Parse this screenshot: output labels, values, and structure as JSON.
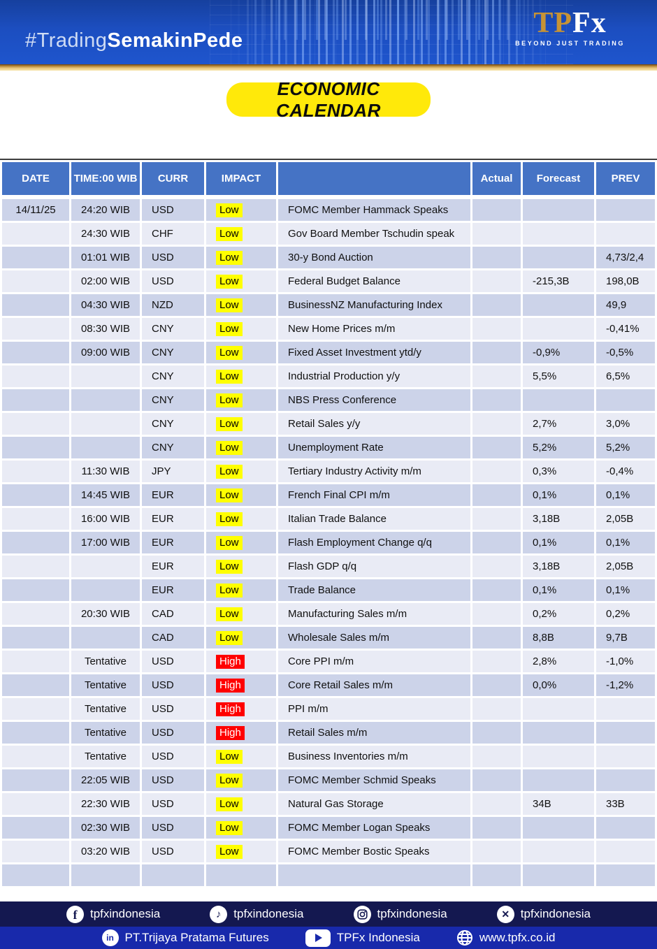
{
  "banner": {
    "hashtag_regular": "#Trading",
    "hashtag_bold": "SemakinPede",
    "logo": {
      "tp": "TP",
      "fx": "Fx",
      "tagline": "BEYOND JUST TRADING"
    }
  },
  "badge": {
    "label": "ECONOMIC CALENDAR"
  },
  "table": {
    "columns": [
      "DATE",
      "TIME:00 WIB",
      "CURR",
      "IMPACT",
      "",
      "Actual",
      "Forecast",
      "PREV"
    ],
    "rows": [
      {
        "date": "14/11/25",
        "time": "24:20 WIB",
        "curr": "USD",
        "impact": "Low",
        "event": "FOMC Member Hammack Speaks",
        "actual": "",
        "forecast": "",
        "prev": ""
      },
      {
        "date": "",
        "time": "24:30 WIB",
        "curr": "CHF",
        "impact": "Low",
        "event": "Gov Board Member Tschudin speak",
        "actual": "",
        "forecast": "",
        "prev": ""
      },
      {
        "date": "",
        "time": "01:01 WIB",
        "curr": "USD",
        "impact": "Low",
        "event": "30-y Bond Auction",
        "actual": "",
        "forecast": "",
        "prev": "4,73/2,4"
      },
      {
        "date": "",
        "time": "02:00 WIB",
        "curr": "USD",
        "impact": "Low",
        "event": "Federal Budget Balance",
        "actual": "",
        "forecast": "-215,3B",
        "prev": "198,0B"
      },
      {
        "date": "",
        "time": "04:30 WIB",
        "curr": "NZD",
        "impact": "Low",
        "event": "BusinessNZ Manufacturing Index",
        "actual": "",
        "forecast": "",
        "prev": "49,9"
      },
      {
        "date": "",
        "time": "08:30 WIB",
        "curr": "CNY",
        "impact": "Low",
        "event": "New Home Prices m/m",
        "actual": "",
        "forecast": "",
        "prev": "-0,41%"
      },
      {
        "date": "",
        "time": "09:00 WIB",
        "curr": "CNY",
        "impact": "Low",
        "event": "Fixed Asset Investment ytd/y",
        "actual": "",
        "forecast": "-0,9%",
        "prev": "-0,5%"
      },
      {
        "date": "",
        "time": "",
        "curr": "CNY",
        "impact": "Low",
        "event": "Industrial Production y/y",
        "actual": "",
        "forecast": "5,5%",
        "prev": "6,5%"
      },
      {
        "date": "",
        "time": "",
        "curr": "CNY",
        "impact": "Low",
        "event": "NBS Press Conference",
        "actual": "",
        "forecast": "",
        "prev": ""
      },
      {
        "date": "",
        "time": "",
        "curr": "CNY",
        "impact": "Low",
        "event": "Retail Sales y/y",
        "actual": "",
        "forecast": "2,7%",
        "prev": "3,0%"
      },
      {
        "date": "",
        "time": "",
        "curr": "CNY",
        "impact": "Low",
        "event": "Unemployment Rate",
        "actual": "",
        "forecast": "5,2%",
        "prev": "5,2%"
      },
      {
        "date": "",
        "time": "11:30 WIB",
        "curr": "JPY",
        "impact": "Low",
        "event": "Tertiary Industry Activity m/m",
        "actual": "",
        "forecast": "0,3%",
        "prev": "-0,4%"
      },
      {
        "date": "",
        "time": "14:45 WIB",
        "curr": "EUR",
        "impact": "Low",
        "event": "French Final CPI m/m",
        "actual": "",
        "forecast": "0,1%",
        "prev": "0,1%"
      },
      {
        "date": "",
        "time": "16:00 WIB",
        "curr": "EUR",
        "impact": "Low",
        "event": "Italian Trade Balance",
        "actual": "",
        "forecast": "3,18B",
        "prev": "2,05B"
      },
      {
        "date": "",
        "time": "17:00 WIB",
        "curr": "EUR",
        "impact": "Low",
        "event": "Flash Employment Change q/q",
        "actual": "",
        "forecast": "0,1%",
        "prev": "0,1%"
      },
      {
        "date": "",
        "time": "",
        "curr": "EUR",
        "impact": "Low",
        "event": "Flash GDP q/q",
        "actual": "",
        "forecast": "3,18B",
        "prev": "2,05B"
      },
      {
        "date": "",
        "time": "",
        "curr": "EUR",
        "impact": "Low",
        "event": "Trade Balance",
        "actual": "",
        "forecast": "0,1%",
        "prev": "0,1%"
      },
      {
        "date": "",
        "time": "20:30 WIB",
        "curr": "CAD",
        "impact": "Low",
        "event": "Manufacturing Sales m/m",
        "actual": "",
        "forecast": "0,2%",
        "prev": "0,2%"
      },
      {
        "date": "",
        "time": "",
        "curr": "CAD",
        "impact": "Low",
        "event": "Wholesale Sales m/m",
        "actual": "",
        "forecast": "8,8B",
        "prev": "9,7B"
      },
      {
        "date": "",
        "time": "Tentative",
        "curr": "USD",
        "impact": "High",
        "event": "Core PPI m/m",
        "actual": "",
        "forecast": "2,8%",
        "prev": "-1,0%"
      },
      {
        "date": "",
        "time": "Tentative",
        "curr": "USD",
        "impact": "High",
        "event": "Core Retail Sales m/m",
        "actual": "",
        "forecast": "0,0%",
        "prev": "-1,2%"
      },
      {
        "date": "",
        "time": "Tentative",
        "curr": "USD",
        "impact": "High",
        "event": "PPI m/m",
        "actual": "",
        "forecast": "",
        "prev": ""
      },
      {
        "date": "",
        "time": "Tentative",
        "curr": "USD",
        "impact": "High",
        "event": "Retail Sales m/m",
        "actual": "",
        "forecast": "",
        "prev": ""
      },
      {
        "date": "",
        "time": "Tentative",
        "curr": "USD",
        "impact": "Low",
        "event": "Business Inventories m/m",
        "actual": "",
        "forecast": "",
        "prev": ""
      },
      {
        "date": "",
        "time": "22:05 WIB",
        "curr": "USD",
        "impact": "Low",
        "event": "FOMC Member Schmid Speaks",
        "actual": "",
        "forecast": "",
        "prev": ""
      },
      {
        "date": "",
        "time": "22:30 WIB",
        "curr": "USD",
        "impact": "Low",
        "event": "Natural Gas Storage",
        "actual": "",
        "forecast": "34B",
        "prev": "33B"
      },
      {
        "date": "",
        "time": "02:30 WIB",
        "curr": "USD",
        "impact": "Low",
        "event": "FOMC Member Logan Speaks",
        "actual": "",
        "forecast": "",
        "prev": ""
      },
      {
        "date": "",
        "time": "03:20 WIB",
        "curr": "USD",
        "impact": "Low",
        "event": "FOMC Member Bostic Speaks",
        "actual": "",
        "forecast": "",
        "prev": ""
      },
      {
        "date": "",
        "time": "",
        "curr": "",
        "impact": "",
        "event": "",
        "actual": "",
        "forecast": "",
        "prev": ""
      }
    ]
  },
  "footer": {
    "social_row": [
      {
        "icon": "facebook-icon",
        "label": "tpfxindonesia"
      },
      {
        "icon": "tiktok-icon",
        "label": "tpfxindonesia"
      },
      {
        "icon": "instagram-icon",
        "label": "tpfxindonesia"
      },
      {
        "icon": "x-icon",
        "label": "tpfxindonesia"
      }
    ],
    "company_row": [
      {
        "icon": "linkedin-icon",
        "label": "PT.Trijaya Pratama Futures"
      },
      {
        "icon": "youtube-icon",
        "label": "TPFx Indonesia"
      },
      {
        "icon": "globe-icon",
        "label": "www.tpfx.co.id"
      }
    ]
  },
  "colors": {
    "banner_blue": "#1c4ec0",
    "gold": "#ecca80",
    "badge_yellow": "#ffe90a",
    "table_header_blue": "#4573c5",
    "row_dark": "#ccd3e9",
    "row_light": "#e9ebf5",
    "impact_low_bg": "#ffff00",
    "impact_high_bg": "#ff0000",
    "footer_navy": "#141850",
    "footer_blue": "#1829ab",
    "logo_gold": "#c79335"
  }
}
